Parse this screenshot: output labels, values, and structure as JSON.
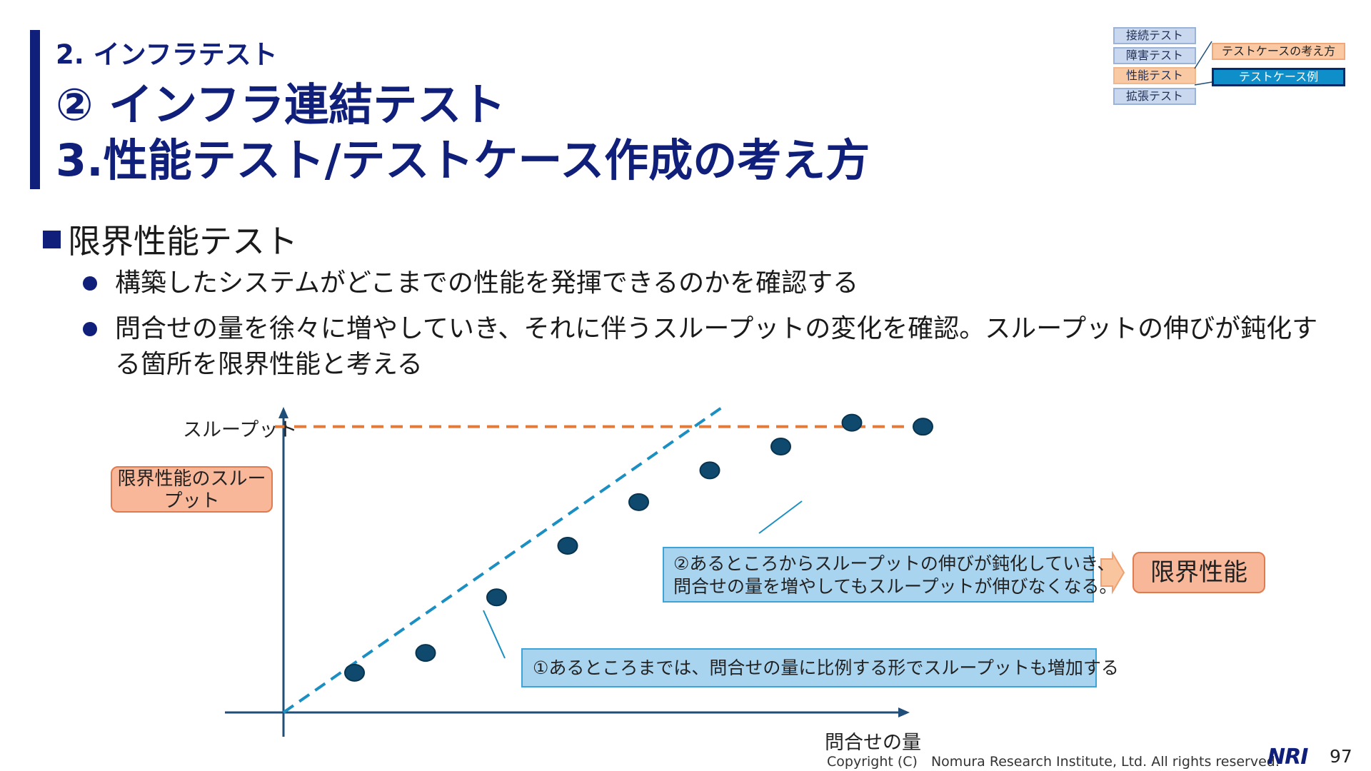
{
  "header": {
    "section": "2. インフラテスト",
    "title_line1": "② インフラ連結テスト",
    "title_line2": "3.性能テスト/テストケース作成の考え方"
  },
  "nav": {
    "items": [
      "接続テスト",
      "障害テスト",
      "性能テスト",
      "拡張テスト"
    ],
    "active_index": 2,
    "sub_items": [
      "テストケースの考え方",
      "テストケース例"
    ]
  },
  "content": {
    "heading": "限界性能テスト",
    "bullets": [
      "構築したシステムがどこまでの性能を発揮できるのかを確認する",
      "問合せの量を徐々に増やしていき、それに伴うスループットの変化を確認。スループットの伸びが鈍化する箇所を限界性能と考える"
    ]
  },
  "chart_data": {
    "type": "scatter",
    "ylabel": "スループット",
    "xlabel": "問合せの量",
    "ytick_box": "限界性能のスループット",
    "points": [
      {
        "x": 1,
        "y": 1.0
      },
      {
        "x": 2,
        "y": 1.5
      },
      {
        "x": 3,
        "y": 2.9
      },
      {
        "x": 4,
        "y": 4.2
      },
      {
        "x": 5,
        "y": 5.3
      },
      {
        "x": 6,
        "y": 6.1
      },
      {
        "x": 7,
        "y": 6.7
      },
      {
        "x": 8,
        "y": 7.3
      },
      {
        "x": 9,
        "y": 7.2
      }
    ],
    "reference_lines": [
      {
        "kind": "proportional",
        "style": "dashed",
        "color": "#1b8fc1"
      },
      {
        "kind": "limit",
        "value": 7.2,
        "style": "dashed",
        "color": "#e07b3c"
      }
    ],
    "annotations": [
      "①あるところまでは、問合せの量に比例する形でスループットも増加する",
      "②あるところからスループットの伸びが鈍化していき、",
      "問合せの量を増やしてもスループットが伸びなくなる。"
    ],
    "result_label": "限界性能",
    "colors": {
      "point": "#0f4a6e",
      "axis": "#1f4e79"
    }
  },
  "footer": {
    "copyright": "Copyright (C)　Nomura Research Institute, Ltd. All rights reserved.",
    "logo": "NRI",
    "page": "97"
  }
}
